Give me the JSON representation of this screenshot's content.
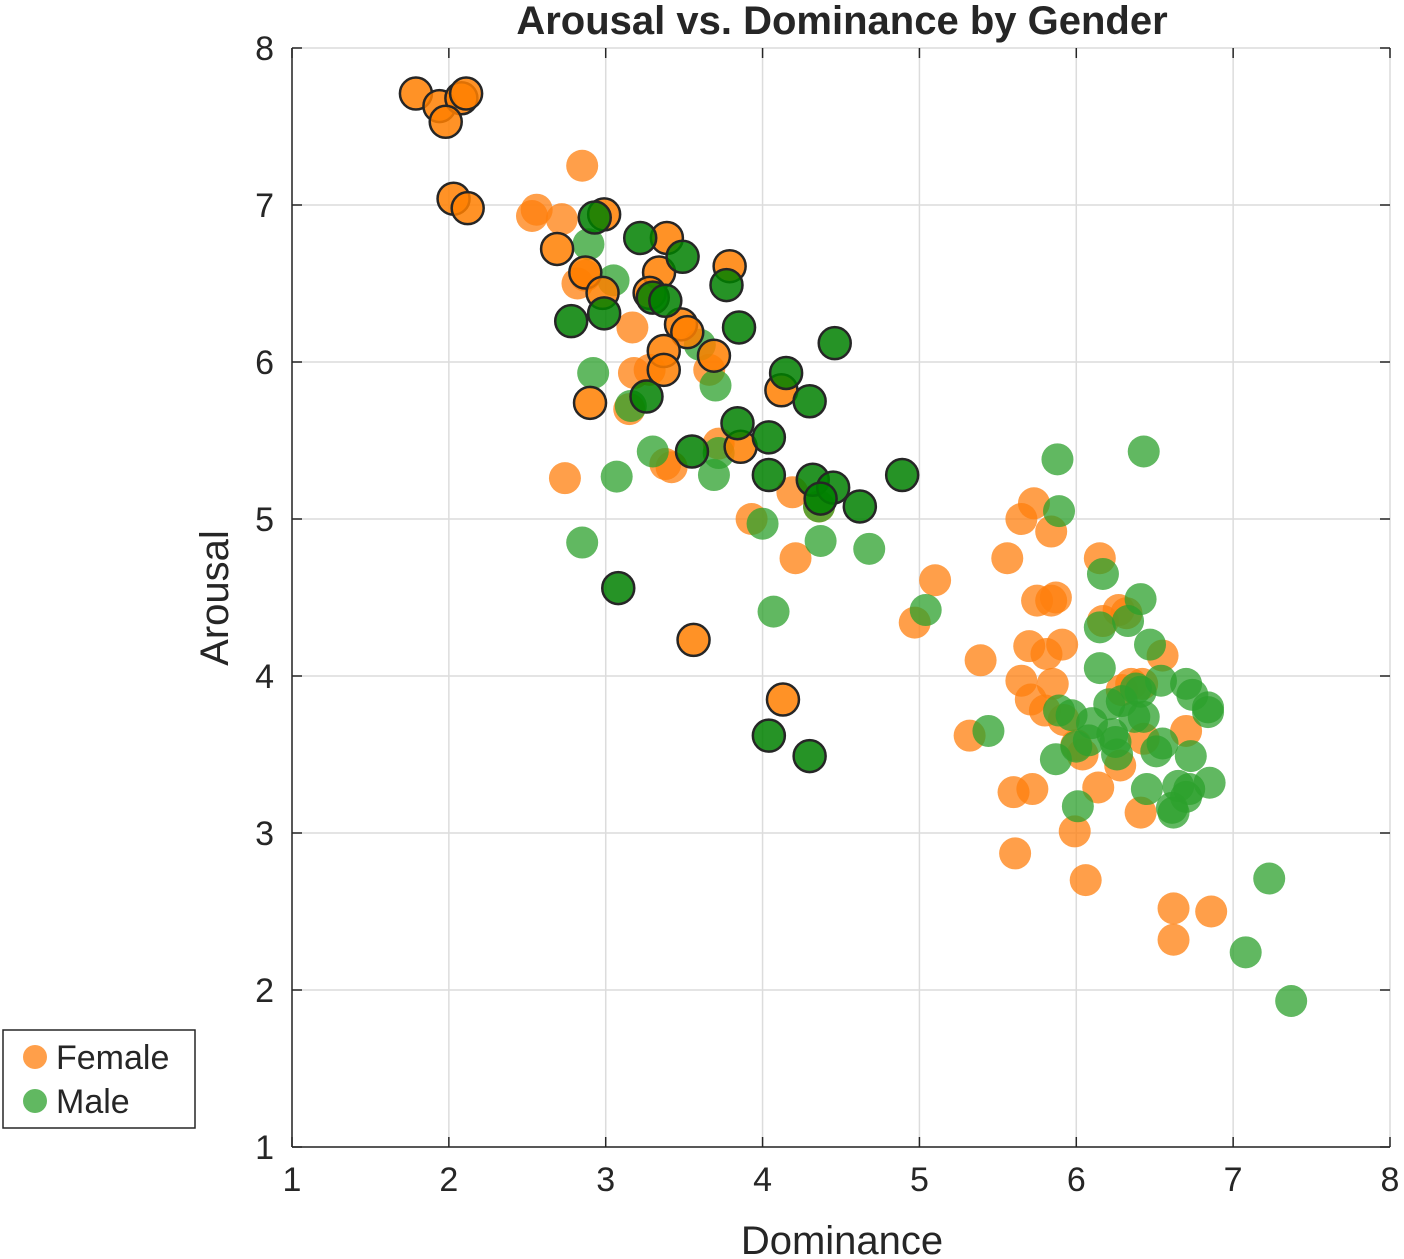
{
  "chart_data": {
    "type": "scatter",
    "title": "Arousal vs. Dominance by Gender",
    "xlabel": "Dominance",
    "ylabel": "Arousal",
    "xlim": [
      1,
      8
    ],
    "ylim": [
      1,
      8
    ],
    "xticks": [
      "1",
      "2",
      "3",
      "4",
      "5",
      "6",
      "7",
      "8"
    ],
    "yticks": [
      "1",
      "2",
      "3",
      "4",
      "5",
      "6",
      "7",
      "8"
    ],
    "grid": true,
    "legend_position": "outside-bottom-left",
    "series": [
      {
        "name": "Female",
        "color": "#ff7f0e",
        "color_highlight": "#ff7f00",
        "points": [
          [
            2.85,
            7.25
          ],
          [
            2.53,
            6.93
          ],
          [
            2.56,
            6.97
          ],
          [
            2.72,
            6.91
          ],
          [
            2.82,
            6.5
          ],
          [
            2.87,
            6.55
          ],
          [
            3.17,
            6.22
          ],
          [
            3.18,
            5.93
          ],
          [
            3.15,
            5.7
          ],
          [
            3.28,
            5.95
          ],
          [
            3.38,
            5.35
          ],
          [
            3.42,
            5.33
          ],
          [
            2.74,
            5.26
          ],
          [
            3.66,
            5.95
          ],
          [
            3.72,
            5.48
          ],
          [
            3.93,
            5.0
          ],
          [
            4.19,
            5.17
          ],
          [
            4.21,
            4.75
          ],
          [
            4.36,
            5.08
          ],
          [
            4.97,
            4.34
          ],
          [
            5.1,
            4.61
          ],
          [
            5.32,
            3.62
          ],
          [
            5.39,
            4.1
          ],
          [
            5.56,
            4.75
          ],
          [
            5.65,
            5.0
          ],
          [
            5.73,
            5.1
          ],
          [
            5.84,
            4.92
          ],
          [
            5.75,
            4.48
          ],
          [
            5.84,
            4.48
          ],
          [
            5.87,
            4.5
          ],
          [
            5.7,
            4.19
          ],
          [
            5.81,
            4.14
          ],
          [
            5.91,
            4.2
          ],
          [
            5.65,
            3.97
          ],
          [
            5.85,
            3.95
          ],
          [
            5.71,
            3.85
          ],
          [
            5.8,
            3.78
          ],
          [
            5.92,
            3.72
          ],
          [
            5.6,
            3.26
          ],
          [
            5.72,
            3.28
          ],
          [
            6.0,
            3.56
          ],
          [
            6.04,
            3.5
          ],
          [
            6.14,
            3.29
          ],
          [
            5.99,
            3.01
          ],
          [
            5.61,
            2.87
          ],
          [
            6.06,
            2.7
          ],
          [
            6.15,
            4.75
          ],
          [
            6.17,
            4.35
          ],
          [
            6.27,
            4.42
          ],
          [
            6.32,
            4.4
          ],
          [
            6.29,
            3.91
          ],
          [
            6.35,
            3.95
          ],
          [
            6.42,
            3.95
          ],
          [
            6.43,
            3.6
          ],
          [
            6.28,
            3.43
          ],
          [
            6.41,
            3.13
          ],
          [
            6.55,
            4.13
          ],
          [
            6.7,
            3.65
          ],
          [
            6.62,
            2.52
          ],
          [
            6.62,
            2.32
          ],
          [
            6.86,
            2.5
          ]
        ],
        "outlined_points": [
          [
            1.79,
            7.71
          ],
          [
            1.94,
            7.63
          ],
          [
            2.08,
            7.68
          ],
          [
            2.11,
            7.71
          ],
          [
            1.98,
            7.53
          ],
          [
            2.03,
            7.04
          ],
          [
            2.12,
            6.98
          ],
          [
            2.99,
            6.94
          ],
          [
            2.69,
            6.72
          ],
          [
            2.87,
            6.57
          ],
          [
            2.98,
            6.44
          ],
          [
            3.39,
            6.79
          ],
          [
            3.34,
            6.57
          ],
          [
            3.28,
            6.44
          ],
          [
            3.48,
            6.24
          ],
          [
            3.52,
            6.19
          ],
          [
            3.79,
            6.61
          ],
          [
            3.37,
            6.07
          ],
          [
            3.37,
            5.95
          ],
          [
            3.69,
            6.04
          ],
          [
            2.9,
            5.74
          ],
          [
            4.12,
            5.82
          ],
          [
            3.86,
            5.46
          ],
          [
            3.56,
            4.23
          ],
          [
            4.13,
            3.85
          ]
        ]
      },
      {
        "name": "Male",
        "color": "#2ca02c",
        "color_highlight": "#008000",
        "points": [
          [
            2.89,
            6.75
          ],
          [
            3.05,
            6.52
          ],
          [
            2.92,
            5.93
          ],
          [
            3.16,
            5.72
          ],
          [
            3.07,
            5.27
          ],
          [
            3.3,
            5.43
          ],
          [
            2.85,
            4.85
          ],
          [
            3.6,
            6.11
          ],
          [
            3.7,
            5.85
          ],
          [
            3.72,
            5.42
          ],
          [
            3.69,
            5.28
          ],
          [
            4.0,
            4.97
          ],
          [
            4.37,
            4.86
          ],
          [
            4.36,
            5.08
          ],
          [
            4.68,
            4.81
          ],
          [
            4.07,
            4.41
          ],
          [
            5.04,
            4.42
          ],
          [
            5.44,
            3.65
          ],
          [
            5.88,
            5.38
          ],
          [
            5.89,
            5.05
          ],
          [
            6.43,
            5.43
          ],
          [
            6.17,
            4.65
          ],
          [
            6.41,
            4.49
          ],
          [
            6.15,
            4.31
          ],
          [
            6.33,
            4.35
          ],
          [
            6.47,
            4.2
          ],
          [
            6.15,
            4.05
          ],
          [
            6.54,
            3.97
          ],
          [
            6.41,
            3.9
          ],
          [
            6.29,
            3.84
          ],
          [
            6.38,
            3.92
          ],
          [
            6.21,
            3.82
          ],
          [
            6.37,
            3.74
          ],
          [
            6.43,
            3.74
          ],
          [
            6.1,
            3.7
          ],
          [
            5.89,
            3.78
          ],
          [
            5.97,
            3.75
          ],
          [
            5.87,
            3.47
          ],
          [
            6.0,
            3.55
          ],
          [
            6.08,
            3.59
          ],
          [
            6.25,
            3.58
          ],
          [
            6.26,
            3.5
          ],
          [
            6.23,
            3.63
          ],
          [
            6.51,
            3.52
          ],
          [
            6.55,
            3.57
          ],
          [
            6.7,
            3.95
          ],
          [
            6.74,
            3.88
          ],
          [
            6.84,
            3.8
          ],
          [
            6.84,
            3.77
          ],
          [
            6.73,
            3.49
          ],
          [
            6.61,
            3.16
          ],
          [
            6.62,
            3.13
          ],
          [
            6.7,
            3.23
          ],
          [
            6.65,
            3.3
          ],
          [
            6.72,
            3.28
          ],
          [
            6.85,
            3.32
          ],
          [
            6.45,
            3.28
          ],
          [
            6.01,
            3.17
          ],
          [
            7.23,
            2.71
          ],
          [
            7.08,
            2.24
          ],
          [
            7.37,
            1.93
          ]
        ],
        "outlined_points": [
          [
            2.93,
            6.92
          ],
          [
            3.22,
            6.79
          ],
          [
            3.49,
            6.67
          ],
          [
            3.77,
            6.49
          ],
          [
            3.3,
            6.41
          ],
          [
            3.38,
            6.39
          ],
          [
            2.78,
            6.26
          ],
          [
            2.99,
            6.31
          ],
          [
            3.85,
            6.22
          ],
          [
            4.46,
            6.12
          ],
          [
            4.15,
            5.93
          ],
          [
            4.3,
            5.75
          ],
          [
            3.26,
            5.78
          ],
          [
            3.84,
            5.61
          ],
          [
            4.04,
            5.52
          ],
          [
            3.55,
            5.43
          ],
          [
            4.04,
            5.28
          ],
          [
            4.32,
            5.25
          ],
          [
            4.45,
            5.2
          ],
          [
            4.37,
            5.13
          ],
          [
            4.62,
            5.08
          ],
          [
            4.89,
            5.28
          ],
          [
            3.08,
            4.56
          ],
          [
            4.04,
            3.62
          ],
          [
            4.3,
            3.49
          ]
        ]
      }
    ]
  }
}
